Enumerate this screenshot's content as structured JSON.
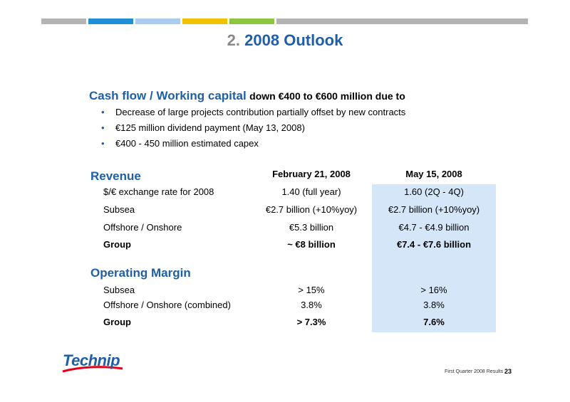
{
  "colors": {
    "accent": "#1f5fa8",
    "highlight": "#d4e6f7",
    "bar_segments": [
      "#b3b3b3",
      "#1f8fd6",
      "#a9cdf0",
      "#f2c200",
      "#8cc63f",
      "#b3b3b3"
    ]
  },
  "title": {
    "number": "2.",
    "text": "2008 Outlook"
  },
  "cash_flow": {
    "heading": "Cash flow / Working capital",
    "heading_rest": "down €400 to €600 million due to",
    "bullets": [
      "Decrease of large projects contribution partially offset by new contracts",
      "€125 million dividend payment (May 13, 2008)",
      "€400 - 450 million estimated capex"
    ]
  },
  "columns": {
    "col1": "February 21, 2008",
    "col2": "May 15, 2008"
  },
  "revenue": {
    "heading": "Revenue",
    "rows": [
      {
        "label": "$/€ exchange rate for 2008",
        "c1": "1.40 (full year)",
        "c2": "1.60 (2Q - 4Q)"
      },
      {
        "label": "Subsea",
        "c1": "€2.7 billion (+10%yoy)",
        "c2": "€2.7 billion (+10%yoy)"
      },
      {
        "label": "Offshore / Onshore",
        "c1": "€5.3 billion",
        "c2": "€4.7 - €4.9 billion"
      },
      {
        "label": "Group",
        "c1": "~ €8 billion",
        "c2": "€7.4 - €7.6 billion"
      }
    ]
  },
  "operating_margin": {
    "heading": "Operating Margin",
    "rows": [
      {
        "label": "Subsea",
        "c1": "> 15%",
        "c2": "> 16%"
      },
      {
        "label": "Offshore / Onshore (combined)",
        "c1": "3.8%",
        "c2": "3.8%"
      },
      {
        "label": "Group",
        "c1": "> 7.3%",
        "c2": "7.6%"
      }
    ]
  },
  "logo": {
    "text": "Technip"
  },
  "footer": {
    "text": "First Quarter 2008 Results",
    "page": "23"
  }
}
